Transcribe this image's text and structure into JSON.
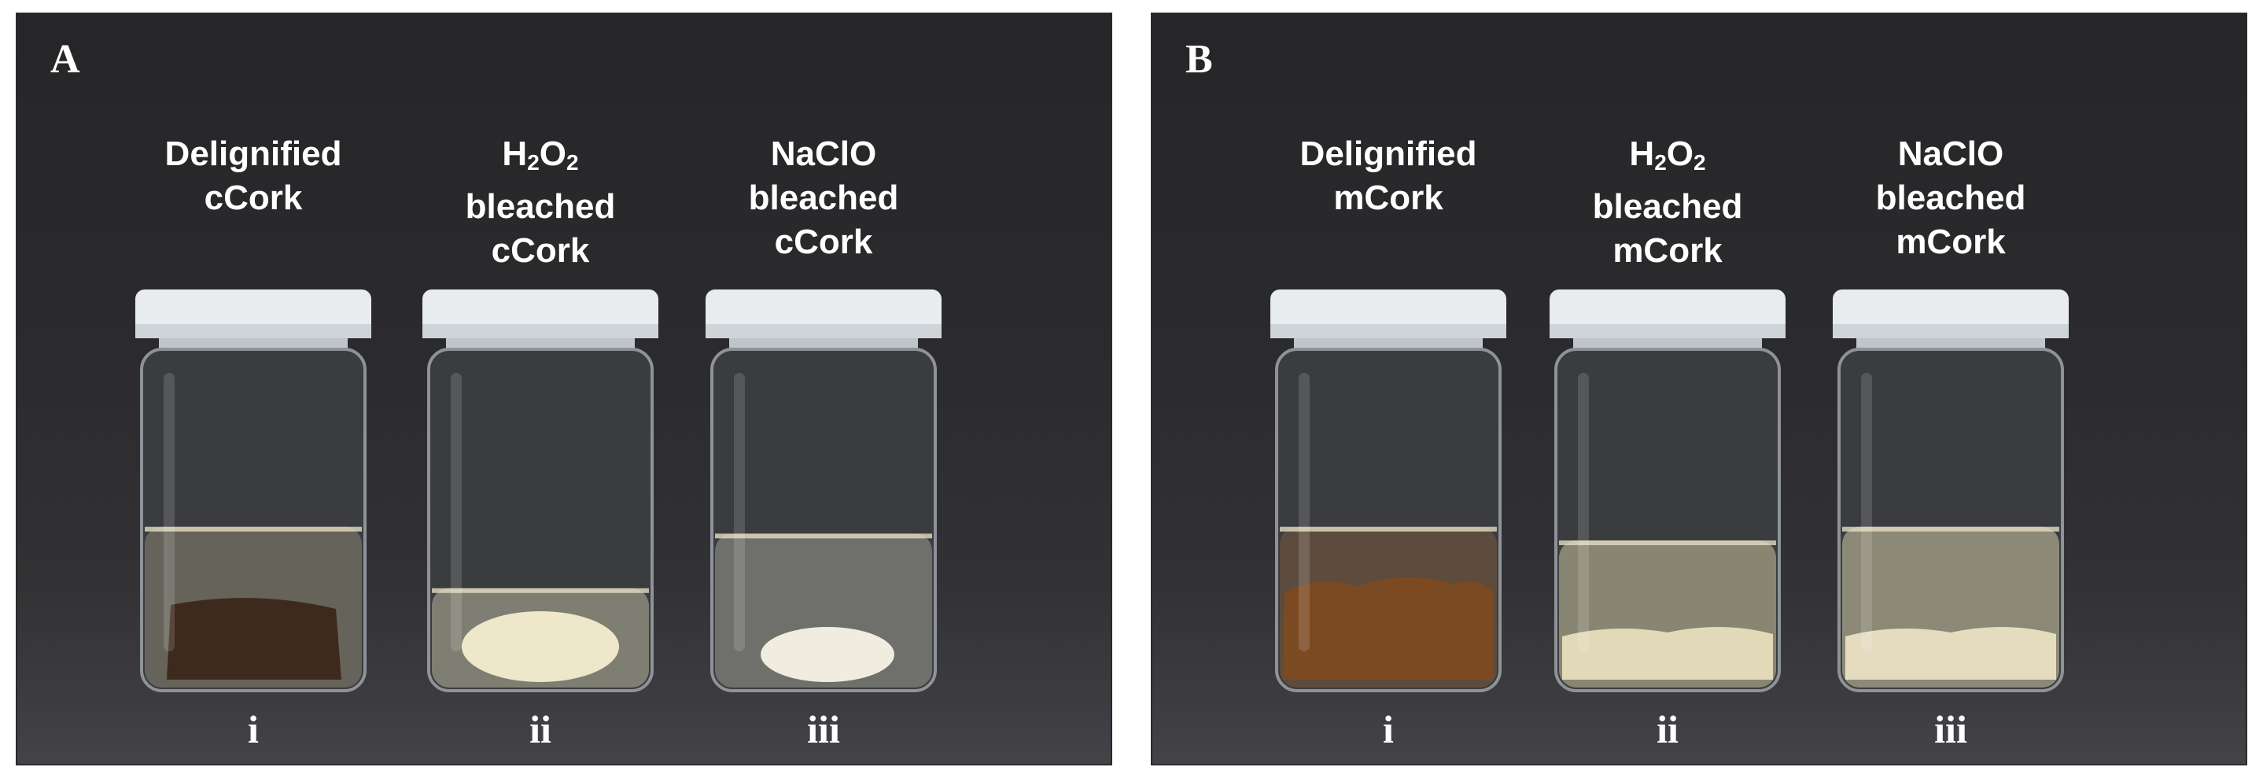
{
  "panels": [
    {
      "letter": "A",
      "vials": [
        {
          "label_lines": [
            "Delignified",
            "cCork"
          ],
          "numeral": "i",
          "liquid": "#8a8470",
          "liquid_level": 0.48,
          "sample": "#3d2a1c",
          "sample_shape": "block"
        },
        {
          "label_lines": [
            "H2O2",
            "bleached",
            "cCork"
          ],
          "numeral": "ii",
          "liquid": "#b8b49a",
          "liquid_level": 0.3,
          "sample": "#efe7c9",
          "sample_shape": "blob"
        },
        {
          "label_lines": [
            "NaClO",
            "bleached",
            "cCork"
          ],
          "numeral": "iii",
          "liquid": "#9a9a90",
          "liquid_level": 0.46,
          "sample": "#f1ece0",
          "sample_shape": "small-blob"
        }
      ]
    },
    {
      "letter": "B",
      "vials": [
        {
          "label_lines": [
            "Delignified",
            "mCork"
          ],
          "numeral": "i",
          "liquid": "#7a5a3a",
          "liquid_level": 0.48,
          "sample": "#7b4a22",
          "sample_shape": "granules"
        },
        {
          "label_lines": [
            "H2O2",
            "bleached",
            "mCork"
          ],
          "numeral": "ii",
          "liquid": "#c9c19a",
          "liquid_level": 0.44,
          "sample": "#ece2c0",
          "sample_shape": "sediment"
        },
        {
          "label_lines": [
            "NaClO",
            "bleached",
            "mCork"
          ],
          "numeral": "iii",
          "liquid": "#cfc9a4",
          "liquid_level": 0.48,
          "sample": "#eee6c8",
          "sample_shape": "sediment"
        }
      ]
    }
  ]
}
